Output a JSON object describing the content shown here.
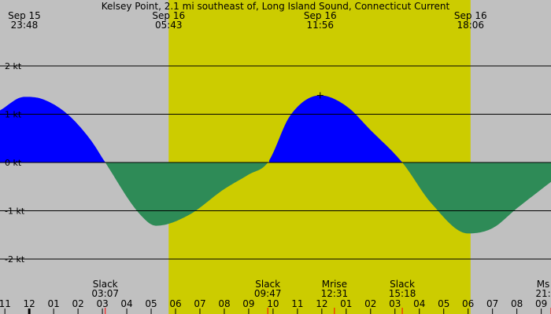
{
  "chart_data": {
    "type": "area",
    "title": "Kelsey Point, 2.1 mi southeast of, Long Island Sound, Connecticut Current",
    "unit": "kt",
    "y_ticks": [
      {
        "value": 2,
        "label": "2 kt"
      },
      {
        "value": 1,
        "label": "1 kt"
      },
      {
        "value": 0,
        "label": "0 kt"
      },
      {
        "value": -1,
        "label": "-1 kt"
      },
      {
        "value": -2,
        "label": "-2 kt"
      }
    ],
    "ylim": [
      -2.5,
      2.5
    ],
    "x_range_hours": [
      -1.2,
      21.4
    ],
    "daylight_hours": [
      5.717,
      18.1
    ],
    "colors": {
      "background": "#c0c0c0",
      "daylight": "#cccc00",
      "flood": "#0000ff",
      "ebb": "#2e8b57",
      "grid": "#000000",
      "tick_mark": "#ff0000"
    },
    "top_labels": [
      {
        "line1": "Sep 15",
        "line2": "23:48",
        "hour": -0.2
      },
      {
        "line1": "Sep 16",
        "line2": "05:43",
        "hour": 5.717
      },
      {
        "line1": "Sep 16",
        "line2": "11:56",
        "hour": 11.933
      },
      {
        "line1": "Sep 16",
        "line2": "18:06",
        "hour": 18.1
      }
    ],
    "events": [
      {
        "label": "Slack",
        "time": "03:07",
        "hour": 3.117
      },
      {
        "label": "Slack",
        "time": "09:47",
        "hour": 9.783
      },
      {
        "label": "Mrise",
        "time": "12:31",
        "hour": 12.517
      },
      {
        "label": "Slack",
        "time": "15:18",
        "hour": 15.3
      },
      {
        "label": "Ms",
        "time": "21:",
        "hour": 21.4
      }
    ],
    "x_tick_labels": [
      {
        "label": "11",
        "hour": -1
      },
      {
        "label": "12",
        "hour": 0
      },
      {
        "label": "01",
        "hour": 1
      },
      {
        "label": "02",
        "hour": 2
      },
      {
        "label": "03",
        "hour": 3
      },
      {
        "label": "04",
        "hour": 4
      },
      {
        "label": "05",
        "hour": 5
      },
      {
        "label": "06",
        "hour": 6
      },
      {
        "label": "07",
        "hour": 7
      },
      {
        "label": "08",
        "hour": 8
      },
      {
        "label": "09",
        "hour": 9
      },
      {
        "label": "10",
        "hour": 10
      },
      {
        "label": "11",
        "hour": 11
      },
      {
        "label": "12",
        "hour": 12
      },
      {
        "label": "01",
        "hour": 13
      },
      {
        "label": "02",
        "hour": 14
      },
      {
        "label": "03",
        "hour": 15
      },
      {
        "label": "04",
        "hour": 16
      },
      {
        "label": "05",
        "hour": 17
      },
      {
        "label": "06",
        "hour": 18
      },
      {
        "label": "07",
        "hour": 19
      },
      {
        "label": "08",
        "hour": 20
      },
      {
        "label": "09",
        "hour": 21
      }
    ],
    "series": [
      {
        "x": [
          -1.2,
          -0.2,
          0.5,
          1.5,
          2.5,
          3.117,
          4.5,
          5.2,
          6.5,
          8.0,
          9.0,
          9.783,
          10.7,
          11.933,
          13.0,
          14.0,
          15.3,
          16.5,
          18.0,
          19.0,
          20.0,
          21.4
        ],
        "y": [
          1.08,
          1.36,
          1.32,
          1.03,
          0.48,
          0.0,
          -1.05,
          -1.31,
          -1.1,
          -0.55,
          -0.25,
          0.0,
          0.97,
          1.39,
          1.17,
          0.67,
          0.0,
          -0.85,
          -1.47,
          -1.36,
          -0.95,
          -0.4
        ]
      }
    ]
  }
}
